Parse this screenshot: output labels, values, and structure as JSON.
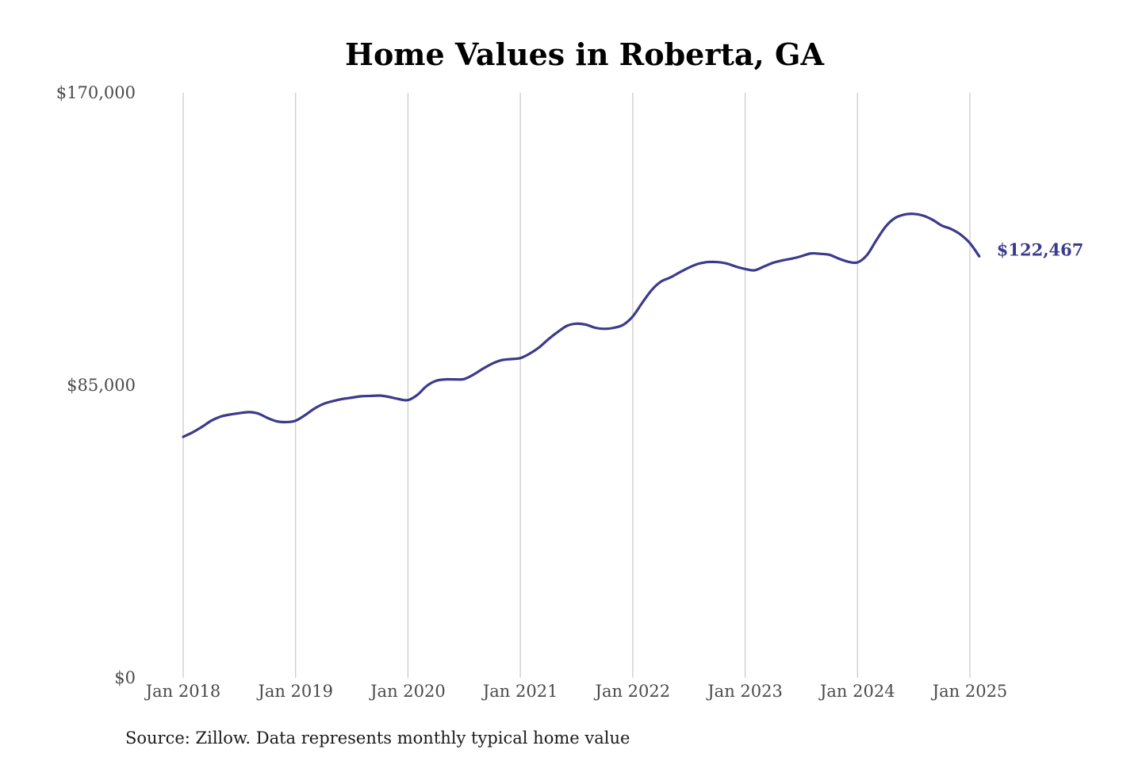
{
  "chart_data": {
    "type": "line",
    "title": "Home Values in Roberta, GA",
    "source": "Source: Zillow. Data represents monthly typical home value",
    "xlabel": "",
    "ylabel": "",
    "ylim": [
      0,
      170000
    ],
    "y_ticks": [
      {
        "value": 0,
        "label": "$0"
      },
      {
        "value": 85000,
        "label": "$85,000"
      },
      {
        "value": 170000,
        "label": "$170,000"
      }
    ],
    "x_ticks": [
      {
        "value": "2018-01",
        "label": "Jan 2018"
      },
      {
        "value": "2019-01",
        "label": "Jan 2019"
      },
      {
        "value": "2020-01",
        "label": "Jan 2020"
      },
      {
        "value": "2021-01",
        "label": "Jan 2021"
      },
      {
        "value": "2022-01",
        "label": "Jan 2022"
      },
      {
        "value": "2023-01",
        "label": "Jan 2023"
      },
      {
        "value": "2024-01",
        "label": "Jan 2024"
      },
      {
        "value": "2025-01",
        "label": "Jan 2025"
      }
    ],
    "grid": {
      "vertical": true,
      "horizontal": false
    },
    "line_color": "#3b3a8c",
    "end_label": "$122,467",
    "series": [
      {
        "x": [
          "2018-01",
          "2018-02",
          "2018-03",
          "2018-04",
          "2018-05",
          "2018-06",
          "2018-07",
          "2018-08",
          "2018-09",
          "2018-10",
          "2018-11",
          "2018-12",
          "2019-01",
          "2019-02",
          "2019-03",
          "2019-04",
          "2019-05",
          "2019-06",
          "2019-07",
          "2019-08",
          "2019-09",
          "2019-10",
          "2019-11",
          "2019-12",
          "2020-01",
          "2020-02",
          "2020-03",
          "2020-04",
          "2020-05",
          "2020-06",
          "2020-07",
          "2020-08",
          "2020-09",
          "2020-10",
          "2020-11",
          "2020-12",
          "2021-01",
          "2021-02",
          "2021-03",
          "2021-04",
          "2021-05",
          "2021-06",
          "2021-07",
          "2021-08",
          "2021-09",
          "2021-10",
          "2021-11",
          "2021-12",
          "2022-01",
          "2022-02",
          "2022-03",
          "2022-04",
          "2022-05",
          "2022-06",
          "2022-07",
          "2022-08",
          "2022-09",
          "2022-10",
          "2022-11",
          "2022-12",
          "2023-01",
          "2023-02",
          "2023-03",
          "2023-04",
          "2023-05",
          "2023-06",
          "2023-07",
          "2023-08",
          "2023-09",
          "2023-10",
          "2023-11",
          "2023-12",
          "2024-01",
          "2024-02",
          "2024-03",
          "2024-04",
          "2024-05",
          "2024-06",
          "2024-07",
          "2024-08",
          "2024-09",
          "2024-10",
          "2024-11",
          "2024-12",
          "2025-01",
          "2025-02"
        ],
        "values": [
          70000,
          71300,
          72900,
          74700,
          75900,
          76500,
          76900,
          77200,
          76800,
          75500,
          74500,
          74300,
          74700,
          76300,
          78200,
          79600,
          80400,
          81000,
          81400,
          81800,
          81900,
          82000,
          81600,
          81000,
          80700,
          82200,
          84800,
          86300,
          86700,
          86700,
          86800,
          88100,
          89800,
          91300,
          92300,
          92600,
          92900,
          94200,
          96000,
          98400,
          100500,
          102300,
          102900,
          102600,
          101700,
          101400,
          101700,
          102600,
          105000,
          108900,
          112600,
          115100,
          116300,
          117800,
          119200,
          120300,
          120800,
          120800,
          120400,
          119500,
          118800,
          118400,
          119500,
          120600,
          121300,
          121800,
          122500,
          123300,
          123200,
          122900,
          121800,
          120900,
          120700,
          122800,
          127100,
          131100,
          133600,
          134600,
          134800,
          134300,
          133100,
          131400,
          130400,
          128800,
          126300,
          122467
        ]
      }
    ]
  }
}
